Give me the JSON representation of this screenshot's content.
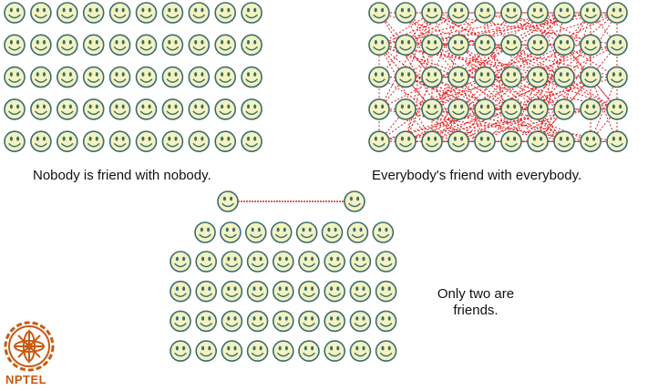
{
  "captions": {
    "left": "Nobody is friend with nobody.",
    "right": "Everybody's friend with everybody.",
    "bottom": "Only two are friends."
  },
  "logo": {
    "text": "NPTEL"
  },
  "grids": {
    "left": {
      "rows": 5,
      "cols": 10,
      "links": "none"
    },
    "right": {
      "rows": 5,
      "cols": 10,
      "links": "all"
    },
    "bottom": {
      "top_pair": 2,
      "row_of_8": 1,
      "rows_of_9": 4,
      "links": "one-pair"
    }
  },
  "colors": {
    "face_fill": "#f3f3c0",
    "face_stroke": "#3a6b73",
    "link": "#e02020",
    "logo": "#c85a12"
  }
}
